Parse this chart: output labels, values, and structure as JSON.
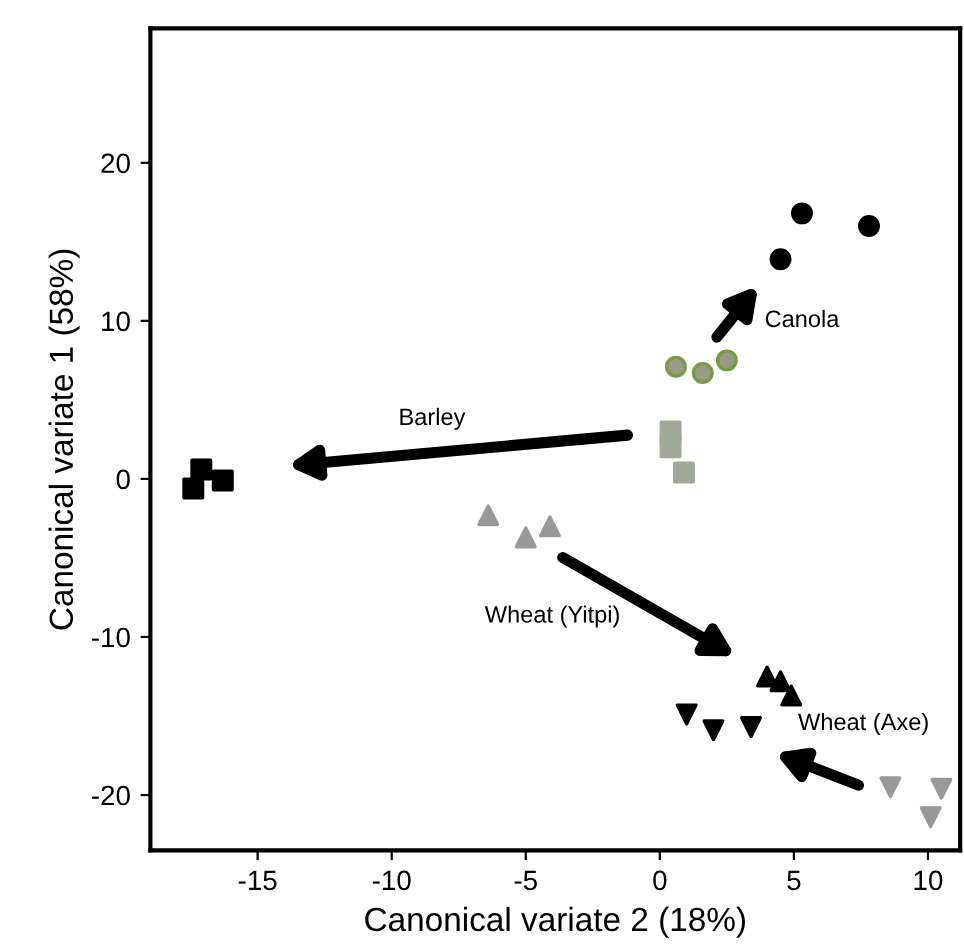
{
  "chart_data": {
    "type": "scatter",
    "xlabel": "Canonical variate 2 (18%)",
    "ylabel": "Canonical variate 1 (58%)",
    "xlim": [
      -19,
      11.2
    ],
    "ylim": [
      -23.5,
      28.5
    ],
    "xticks": [
      -15,
      -10,
      -5,
      0,
      5,
      10
    ],
    "yticks": [
      -20,
      -10,
      0,
      10,
      20
    ],
    "grid": false,
    "legend": false,
    "series": [
      {
        "color": "#000000",
        "marker": "square",
        "x": [
          -17.4,
          -17.1,
          -16.3
        ],
        "values": [
          -0.6,
          0.6,
          -0.1
        ]
      },
      {
        "color": "#000000",
        "marker": "circle",
        "x": [
          4.5,
          5.3,
          7.8
        ],
        "values": [
          13.9,
          16.8,
          16.0
        ]
      },
      {
        "color": "#9a9a88",
        "marker": "circle",
        "x": [
          0.6,
          1.6,
          2.5
        ],
        "values": [
          7.1,
          6.7,
          7.5
        ]
      },
      {
        "color": "#a0a898",
        "marker": "square",
        "x": [
          0.4,
          0.4,
          0.9
        ],
        "values": [
          3.0,
          2.0,
          0.4
        ]
      },
      {
        "color": "#999999",
        "marker": "triangle",
        "x": [
          -6.4,
          -5.0,
          -4.1
        ],
        "values": [
          -2.3,
          -3.7,
          -3.0
        ]
      },
      {
        "color": "#000000",
        "marker": "triangle",
        "x": [
          4.0,
          4.5,
          4.9
        ],
        "values": [
          -12.5,
          -12.8,
          -13.7
        ]
      },
      {
        "color": "#000000",
        "marker": "triangle_down",
        "x": [
          1.0,
          2.0,
          3.4
        ],
        "values": [
          -14.9,
          -15.9,
          -15.7
        ]
      },
      {
        "color": "#999999",
        "marker": "triangle_down",
        "x": [
          8.6,
          10.5,
          10.1
        ],
        "values": [
          -19.5,
          -19.6,
          -21.4
        ]
      }
    ],
    "annotations": [
      "Canola",
      "Barley",
      "Wheat (Yitpi)",
      "Wheat (Axe)"
    ]
  }
}
